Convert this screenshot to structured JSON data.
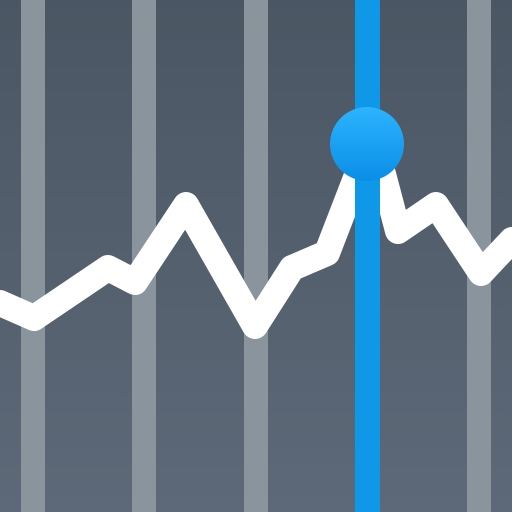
{
  "icon": {
    "name": "line-chart-cursor-icon",
    "colors": {
      "background_top": "#4b5663",
      "background_bottom": "#5d6978",
      "gridline": "#8a949c",
      "line": "#ffffff",
      "cursor": "#0f97e8",
      "cursor_dot_top": "#2bb4ff",
      "cursor_dot_bottom": "#0a8ee6"
    }
  }
}
